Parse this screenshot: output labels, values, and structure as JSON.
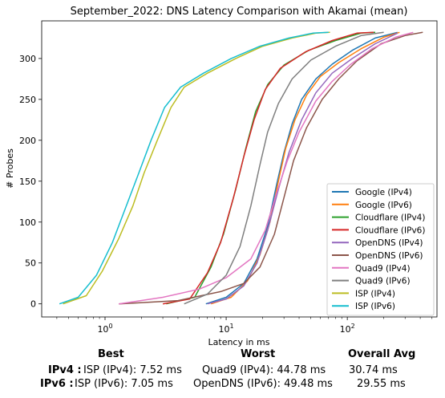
{
  "chart_data": {
    "type": "line",
    "title": "September_2022: DNS Latency Comparison with Akamai (mean)",
    "xlabel": "Latency in ms",
    "ylabel": "# Probes",
    "xscale": "log",
    "xlim": [
      0.3,
      550
    ],
    "ylim": [
      -16,
      346
    ],
    "xticks": [
      1,
      10,
      100
    ],
    "xtick_labels": [
      "10",
      "10",
      "10"
    ],
    "xtick_exponents": [
      "0",
      "1",
      "2"
    ],
    "yticks": [
      0,
      50,
      100,
      150,
      200,
      250,
      300
    ],
    "ytick_labels": [
      "0",
      "50",
      "100",
      "150",
      "200",
      "250",
      "300"
    ],
    "grid": false,
    "legend_position": "lower-right",
    "series": [
      {
        "name": "Google (IPv4)",
        "color": "#1f77b4",
        "points": [
          [
            6.8,
            0
          ],
          [
            10,
            8
          ],
          [
            14,
            25
          ],
          [
            18,
            55
          ],
          [
            22,
            95
          ],
          [
            26,
            145
          ],
          [
            30,
            185
          ],
          [
            35,
            220
          ],
          [
            42,
            250
          ],
          [
            55,
            275
          ],
          [
            75,
            293
          ],
          [
            110,
            310
          ],
          [
            170,
            325
          ],
          [
            260,
            332
          ]
        ]
      },
      {
        "name": "Google (IPv6)",
        "color": "#ff7f0e",
        "points": [
          [
            7.5,
            0
          ],
          [
            11,
            8
          ],
          [
            15,
            28
          ],
          [
            19,
            60
          ],
          [
            23,
            100
          ],
          [
            27,
            150
          ],
          [
            31,
            190
          ],
          [
            37,
            225
          ],
          [
            46,
            255
          ],
          [
            60,
            278
          ],
          [
            85,
            295
          ],
          [
            130,
            312
          ],
          [
            200,
            326
          ],
          [
            270,
            332
          ]
        ]
      },
      {
        "name": "Cloudflare (IPv4)",
        "color": "#2ca02c",
        "points": [
          [
            3.2,
            0
          ],
          [
            5.5,
            8
          ],
          [
            7.5,
            45
          ],
          [
            9.5,
            85
          ],
          [
            12,
            140
          ],
          [
            14.5,
            190
          ],
          [
            17.5,
            235
          ],
          [
            22,
            268
          ],
          [
            30,
            292
          ],
          [
            48,
            310
          ],
          [
            80,
            322
          ],
          [
            130,
            331
          ],
          [
            170,
            332
          ]
        ]
      },
      {
        "name": "Cloudflare (IPv6)",
        "color": "#d62728",
        "points": [
          [
            3,
            0
          ],
          [
            5,
            6
          ],
          [
            7,
            38
          ],
          [
            9,
            75
          ],
          [
            11.5,
            130
          ],
          [
            14,
            180
          ],
          [
            17,
            225
          ],
          [
            21,
            262
          ],
          [
            28,
            288
          ],
          [
            45,
            308
          ],
          [
            75,
            322
          ],
          [
            120,
            331
          ],
          [
            165,
            332
          ]
        ]
      },
      {
        "name": "OpenDNS (IPv4)",
        "color": "#9467bd",
        "points": [
          [
            7,
            0
          ],
          [
            10,
            6
          ],
          [
            14,
            22
          ],
          [
            18,
            50
          ],
          [
            22,
            90
          ],
          [
            27,
            140
          ],
          [
            33,
            185
          ],
          [
            42,
            225
          ],
          [
            55,
            258
          ],
          [
            75,
            282
          ],
          [
            110,
            300
          ],
          [
            170,
            318
          ],
          [
            260,
            331
          ]
        ]
      },
      {
        "name": "OpenDNS (IPv6)",
        "color": "#8c564b",
        "points": [
          [
            1.3,
            0
          ],
          [
            4,
            4
          ],
          [
            9,
            15
          ],
          [
            14,
            25
          ],
          [
            19,
            45
          ],
          [
            25,
            85
          ],
          [
            30,
            130
          ],
          [
            36,
            175
          ],
          [
            46,
            215
          ],
          [
            62,
            250
          ],
          [
            85,
            275
          ],
          [
            120,
            297
          ],
          [
            190,
            318
          ],
          [
            300,
            328
          ],
          [
            420,
            332
          ]
        ]
      },
      {
        "name": "Quad9 (IPv4)",
        "color": "#e377c2",
        "points": [
          [
            1.3,
            0
          ],
          [
            3,
            8
          ],
          [
            6,
            18
          ],
          [
            10,
            32
          ],
          [
            16,
            55
          ],
          [
            21,
            90
          ],
          [
            26,
            135
          ],
          [
            32,
            175
          ],
          [
            40,
            210
          ],
          [
            55,
            248
          ],
          [
            75,
            272
          ],
          [
            105,
            292
          ],
          [
            160,
            312
          ],
          [
            250,
            326
          ],
          [
            350,
            332
          ]
        ]
      },
      {
        "name": "Quad9 (IPv6)",
        "color": "#7f7f7f",
        "points": [
          [
            4.5,
            0
          ],
          [
            7,
            12
          ],
          [
            10,
            35
          ],
          [
            13,
            70
          ],
          [
            16,
            120
          ],
          [
            19,
            170
          ],
          [
            22,
            210
          ],
          [
            27,
            245
          ],
          [
            35,
            275
          ],
          [
            50,
            298
          ],
          [
            80,
            315
          ],
          [
            130,
            328
          ],
          [
            200,
            332
          ]
        ]
      },
      {
        "name": "ISP (IPv4)",
        "color": "#bcbd22",
        "points": [
          [
            0.45,
            0
          ],
          [
            0.7,
            10
          ],
          [
            0.95,
            40
          ],
          [
            1.3,
            80
          ],
          [
            1.7,
            120
          ],
          [
            2.1,
            160
          ],
          [
            2.7,
            200
          ],
          [
            3.5,
            240
          ],
          [
            4.5,
            265
          ],
          [
            7,
            282
          ],
          [
            12,
            300
          ],
          [
            20,
            315
          ],
          [
            35,
            325
          ],
          [
            55,
            331
          ],
          [
            72,
            332
          ]
        ]
      },
      {
        "name": "ISP (IPv6)",
        "color": "#17becf",
        "points": [
          [
            0.42,
            0
          ],
          [
            0.6,
            8
          ],
          [
            0.85,
            35
          ],
          [
            1.15,
            75
          ],
          [
            1.5,
            120
          ],
          [
            1.9,
            160
          ],
          [
            2.4,
            200
          ],
          [
            3.1,
            240
          ],
          [
            4.2,
            265
          ],
          [
            6.5,
            282
          ],
          [
            11,
            300
          ],
          [
            19,
            315
          ],
          [
            33,
            325
          ],
          [
            52,
            331
          ],
          [
            70,
            332
          ]
        ]
      }
    ]
  },
  "summary": {
    "headers": {
      "best": "Best",
      "worst": "Worst",
      "overall": "Overall Avg"
    },
    "rows": [
      {
        "label": "IPv4 :",
        "best": "ISP (IPv4): 7.52 ms",
        "worst": "Quad9 (IPv4): 44.78 ms",
        "overall": "30.74 ms"
      },
      {
        "label": "IPv6 :",
        "best": "ISP (IPv6): 7.05 ms",
        "worst": "OpenDNS (IPv6): 49.48 ms",
        "overall": "29.55 ms"
      }
    ]
  }
}
